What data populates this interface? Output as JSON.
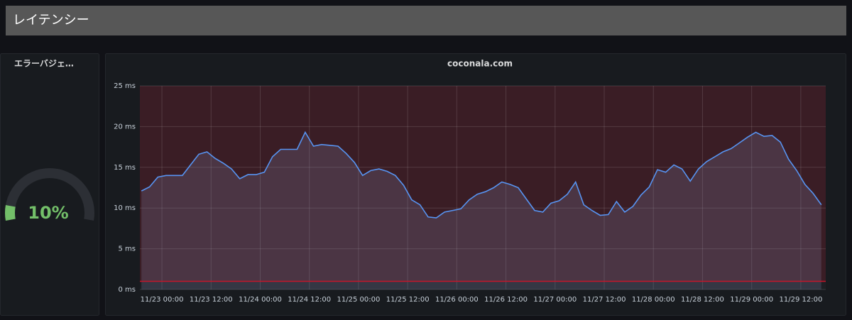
{
  "header": {
    "title": "レイテンシー"
  },
  "gauge": {
    "title": "エラーバジェ…",
    "value": 10,
    "value_label": "10%",
    "range": [
      0,
      100
    ],
    "color": "#73bf69"
  },
  "chart_data": {
    "type": "line",
    "title": "coconala.com",
    "x": [
      "11/22 19:00",
      "11/22 21:00",
      "11/22 23:00",
      "11/23 01:00",
      "11/23 03:00",
      "11/23 05:00",
      "11/23 07:00",
      "11/23 09:00",
      "11/23 11:00",
      "11/23 13:00",
      "11/23 15:00",
      "11/23 17:00",
      "11/23 19:00",
      "11/23 21:00",
      "11/23 23:00",
      "11/24 01:00",
      "11/24 03:00",
      "11/24 05:00",
      "11/24 07:00",
      "11/24 09:00",
      "11/24 11:00",
      "11/24 13:00",
      "11/24 15:00",
      "11/24 17:00",
      "11/24 19:00",
      "11/24 21:00",
      "11/24 23:00",
      "11/25 01:00",
      "11/25 03:00",
      "11/25 05:00",
      "11/25 07:00",
      "11/25 09:00",
      "11/25 11:00",
      "11/25 13:00",
      "11/25 15:00",
      "11/25 17:00",
      "11/25 19:00",
      "11/25 21:00",
      "11/25 23:00",
      "11/26 01:00",
      "11/26 03:00",
      "11/26 05:00",
      "11/26 07:00",
      "11/26 09:00",
      "11/26 11:00",
      "11/26 13:00",
      "11/26 15:00",
      "11/26 17:00",
      "11/26 19:00",
      "11/26 21:00",
      "11/26 23:00",
      "11/27 01:00",
      "11/27 03:00",
      "11/27 05:00",
      "11/27 07:00",
      "11/27 09:00",
      "11/27 11:00",
      "11/27 13:00",
      "11/27 15:00",
      "11/27 17:00",
      "11/27 19:00",
      "11/27 21:00",
      "11/27 23:00",
      "11/28 01:00",
      "11/28 03:00",
      "11/28 05:00",
      "11/28 07:00",
      "11/28 09:00",
      "11/28 11:00",
      "11/28 13:00",
      "11/28 15:00",
      "11/28 17:00",
      "11/28 19:00",
      "11/28 21:00",
      "11/28 23:00",
      "11/29 01:00",
      "11/29 03:00",
      "11/29 05:00",
      "11/29 07:00",
      "11/29 09:00",
      "11/29 11:00",
      "11/29 13:00",
      "11/29 15:00",
      "11/29 17:00"
    ],
    "series": [
      {
        "color": "#5794f2",
        "values": [
          12.1,
          12.6,
          13.8,
          14,
          14,
          14,
          15.3,
          16.6,
          16.9,
          16.1,
          15.5,
          14.8,
          13.6,
          14.1,
          14.1,
          14.4,
          16.3,
          17.2,
          17.2,
          17.2,
          19.3,
          17.6,
          17.8,
          17.7,
          17.6,
          16.7,
          15.6,
          14,
          14.6,
          14.8,
          14.5,
          14,
          12.8,
          11,
          10.4,
          8.9,
          8.8,
          9.5,
          9.7,
          9.9,
          11,
          11.7,
          12,
          12.5,
          13.2,
          12.9,
          12.5,
          11.1,
          9.7,
          9.5,
          10.6,
          10.9,
          11.7,
          13.2,
          10.4,
          9.7,
          9.1,
          9.2,
          10.8,
          9.5,
          10.2,
          11.6,
          12.6,
          14.7,
          14.4,
          15.3,
          14.8,
          13.3,
          14.8,
          15.7,
          16.3,
          16.9,
          17.3,
          18,
          18.7,
          19.3,
          18.8,
          18.9,
          18.1,
          16,
          14.6,
          12.9,
          11.8,
          10.4
        ]
      }
    ],
    "xlim": [
      "11/22 18:37",
      "11/29 18:05"
    ],
    "xticks": [
      "11/23 00:00",
      "11/23 12:00",
      "11/24 00:00",
      "11/24 12:00",
      "11/25 00:00",
      "11/25 12:00",
      "11/26 00:00",
      "11/26 12:00",
      "11/27 00:00",
      "11/27 12:00",
      "11/28 00:00",
      "11/28 12:00",
      "11/29 00:00",
      "11/29 12:00"
    ],
    "ylim": [
      0,
      25
    ],
    "yticks": [
      {
        "value": 0,
        "label": "0 ms"
      },
      {
        "value": 5,
        "label": "5 ms"
      },
      {
        "value": 10,
        "label": "10 ms"
      },
      {
        "value": 15,
        "label": "15 ms"
      },
      {
        "value": 20,
        "label": "20 ms"
      },
      {
        "value": 25,
        "label": "25 ms"
      }
    ],
    "threshold": 1,
    "threshold_color": "#c4162a",
    "grid": true
  }
}
